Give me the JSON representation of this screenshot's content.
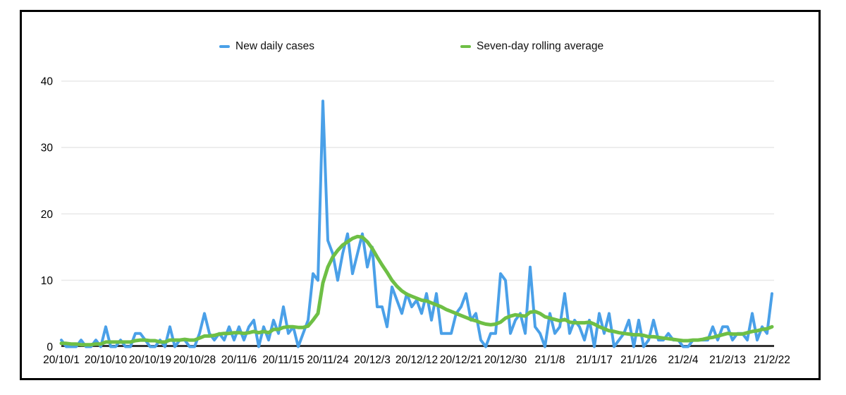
{
  "page": {
    "background_color": "#ffffff",
    "frame_border_color": "#000000"
  },
  "chart_data": {
    "type": "line",
    "title": "",
    "xlabel": "",
    "ylabel": "",
    "ylim": [
      0,
      40
    ],
    "y_ticks": [
      0,
      10,
      20,
      30,
      40
    ],
    "grid": "horizontal",
    "gridline_color": "#e8e8e8",
    "axis_color": "#333333",
    "tick_label_color": "#000000",
    "legend_position": "top",
    "x_start": "20/10/1",
    "x_end": "21/2/22",
    "x_interval": "daily",
    "n_points": 145,
    "x_tick_labels": [
      "20/10/1",
      "20/10/10",
      "20/10/19",
      "20/10/28",
      "20/11/6",
      "20/11/15",
      "20/11/24",
      "20/12/3",
      "20/12/12",
      "20/12/21",
      "20/12/30",
      "21/1/8",
      "21/1/17",
      "21/1/26",
      "21/2/4",
      "21/2/13",
      "21/2/22"
    ],
    "x_tick_step_days": 9,
    "series": [
      {
        "name": "New daily cases",
        "color": "#4aa0e8",
        "width": 4,
        "values": [
          1,
          0,
          0,
          0,
          1,
          0,
          0,
          1,
          0,
          3,
          0,
          0,
          1,
          0,
          0,
          2,
          2,
          1,
          0,
          0,
          1,
          0,
          3,
          0,
          1,
          1,
          0,
          0,
          2,
          5,
          2,
          1,
          2,
          1,
          3,
          1,
          3,
          1,
          3,
          4,
          0,
          3,
          1,
          4,
          2,
          6,
          2,
          3,
          0,
          2,
          4,
          11,
          10,
          37,
          16,
          14,
          10,
          14,
          17,
          11,
          14,
          17,
          12,
          15,
          6,
          6,
          3,
          9,
          7,
          5,
          8,
          6,
          7,
          5,
          8,
          4,
          8,
          2,
          2,
          2,
          5,
          6,
          8,
          4,
          5,
          1,
          0,
          2,
          2,
          11,
          10,
          2,
          4,
          5,
          2,
          12,
          3,
          2,
          0,
          5,
          2,
          3,
          8,
          2,
          4,
          3,
          1,
          4,
          0,
          5,
          2,
          5,
          0,
          1,
          2,
          4,
          0,
          4,
          0,
          1,
          4,
          1,
          1,
          2,
          1,
          1,
          0,
          0,
          1,
          1,
          1,
          1,
          3,
          1,
          3,
          3,
          1,
          2,
          2,
          1,
          5,
          1,
          3,
          2,
          8
        ]
      },
      {
        "name": "Seven-day rolling average",
        "color": "#6ebf45",
        "width": 5,
        "values": [
          0.5,
          0.5,
          0.4,
          0.4,
          0.3,
          0.3,
          0.3,
          0.4,
          0.4,
          0.7,
          0.7,
          0.7,
          0.7,
          0.7,
          0.7,
          0.9,
          1.0,
          1.0,
          0.9,
          0.9,
          0.7,
          0.7,
          1.0,
          1.0,
          1.0,
          1.1,
          1.0,
          1.0,
          1.3,
          1.6,
          1.6,
          1.7,
          1.9,
          2.0,
          2.0,
          2.1,
          2.1,
          2.0,
          2.1,
          2.3,
          2.1,
          2.3,
          2.1,
          2.6,
          2.6,
          2.9,
          3.0,
          3.0,
          2.9,
          2.9,
          3.1,
          4.0,
          5.0,
          9.6,
          12.0,
          13.5,
          14.5,
          15.3,
          15.8,
          16.3,
          16.6,
          16.5,
          15.8,
          14.8,
          13.5,
          12.3,
          11.2,
          10.0,
          9.1,
          8.4,
          7.9,
          7.6,
          7.3,
          7.0,
          6.9,
          6.6,
          6.3,
          6.0,
          5.6,
          5.3,
          5.0,
          4.7,
          4.4,
          4.1,
          3.9,
          3.6,
          3.4,
          3.3,
          3.4,
          3.7,
          4.3,
          4.6,
          4.8,
          4.7,
          4.6,
          5.2,
          5.3,
          5.0,
          4.5,
          4.3,
          4.1,
          3.9,
          4.1,
          3.7,
          3.6,
          3.6,
          3.6,
          3.7,
          3.4,
          3.0,
          2.7,
          2.4,
          2.3,
          2.1,
          2.0,
          1.9,
          1.8,
          1.8,
          1.7,
          1.5,
          1.5,
          1.4,
          1.3,
          1.2,
          1.1,
          1.0,
          0.9,
          0.9,
          1.0,
          1.0,
          1.1,
          1.3,
          1.4,
          1.6,
          1.8,
          2.0,
          1.9,
          1.9,
          1.9,
          2.1,
          2.3,
          2.4,
          2.6,
          2.7,
          3.0
        ]
      }
    ]
  }
}
